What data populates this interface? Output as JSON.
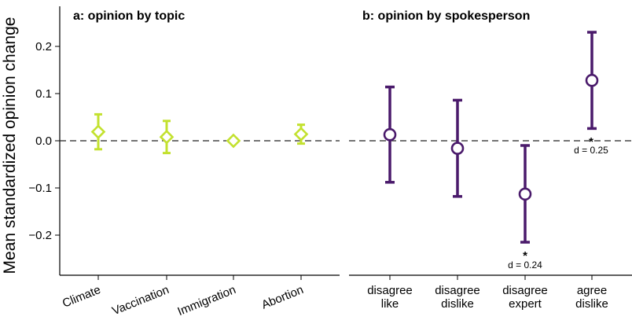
{
  "chart_data": {
    "type": "scatter",
    "ylabel": "Mean standardized opinion change",
    "ylim": [
      -0.285,
      0.285
    ],
    "yticks": [
      0.2,
      0.1,
      0.0,
      -0.1,
      -0.2
    ],
    "ytick_labels": [
      "0.2",
      "0.1",
      "0.0",
      "−0.1",
      "−0.2"
    ],
    "reference_line": 0,
    "panels": [
      {
        "title": "a: opinion by topic",
        "color": "#c3e12f",
        "marker": "diamond",
        "categories": [
          "Climate",
          "Vaccination",
          "Immigration",
          "Abortion"
        ],
        "points": [
          {
            "label": "Climate",
            "y": 0.019,
            "lower": -0.018,
            "upper": 0.056
          },
          {
            "label": "Vaccination",
            "y": 0.008,
            "lower": -0.026,
            "upper": 0.042
          },
          {
            "label": "Immigration",
            "y": 0.0,
            "lower": -0.004,
            "upper": 0.004
          },
          {
            "label": "Abortion",
            "y": 0.014,
            "lower": -0.006,
            "upper": 0.034
          }
        ]
      },
      {
        "title": "b: opinion by spokesperson",
        "color": "#4a1a6b",
        "marker": "circle",
        "categories": [
          "disagree like",
          "disagree dislike",
          "disagree expert",
          "agree dislike"
        ],
        "category_lines": [
          [
            "disagree",
            "like"
          ],
          [
            "disagree",
            "dislike"
          ],
          [
            "disagree",
            "expert"
          ],
          [
            "agree",
            "dislike"
          ]
        ],
        "points": [
          {
            "label": "disagree like",
            "y": 0.013,
            "lower": -0.088,
            "upper": 0.114
          },
          {
            "label": "disagree dislike",
            "y": -0.016,
            "lower": -0.118,
            "upper": 0.086
          },
          {
            "label": "disagree expert",
            "y": -0.113,
            "lower": -0.215,
            "upper": -0.01
          },
          {
            "label": "agree dislike",
            "y": 0.128,
            "lower": 0.026,
            "upper": 0.23
          }
        ],
        "annotations": [
          {
            "category": "disagree expert",
            "star": "*",
            "text": "d = 0.24",
            "position": "below"
          },
          {
            "category": "agree dislike",
            "star": "*",
            "text": "d = 0.25",
            "position": "below"
          }
        ]
      }
    ]
  }
}
